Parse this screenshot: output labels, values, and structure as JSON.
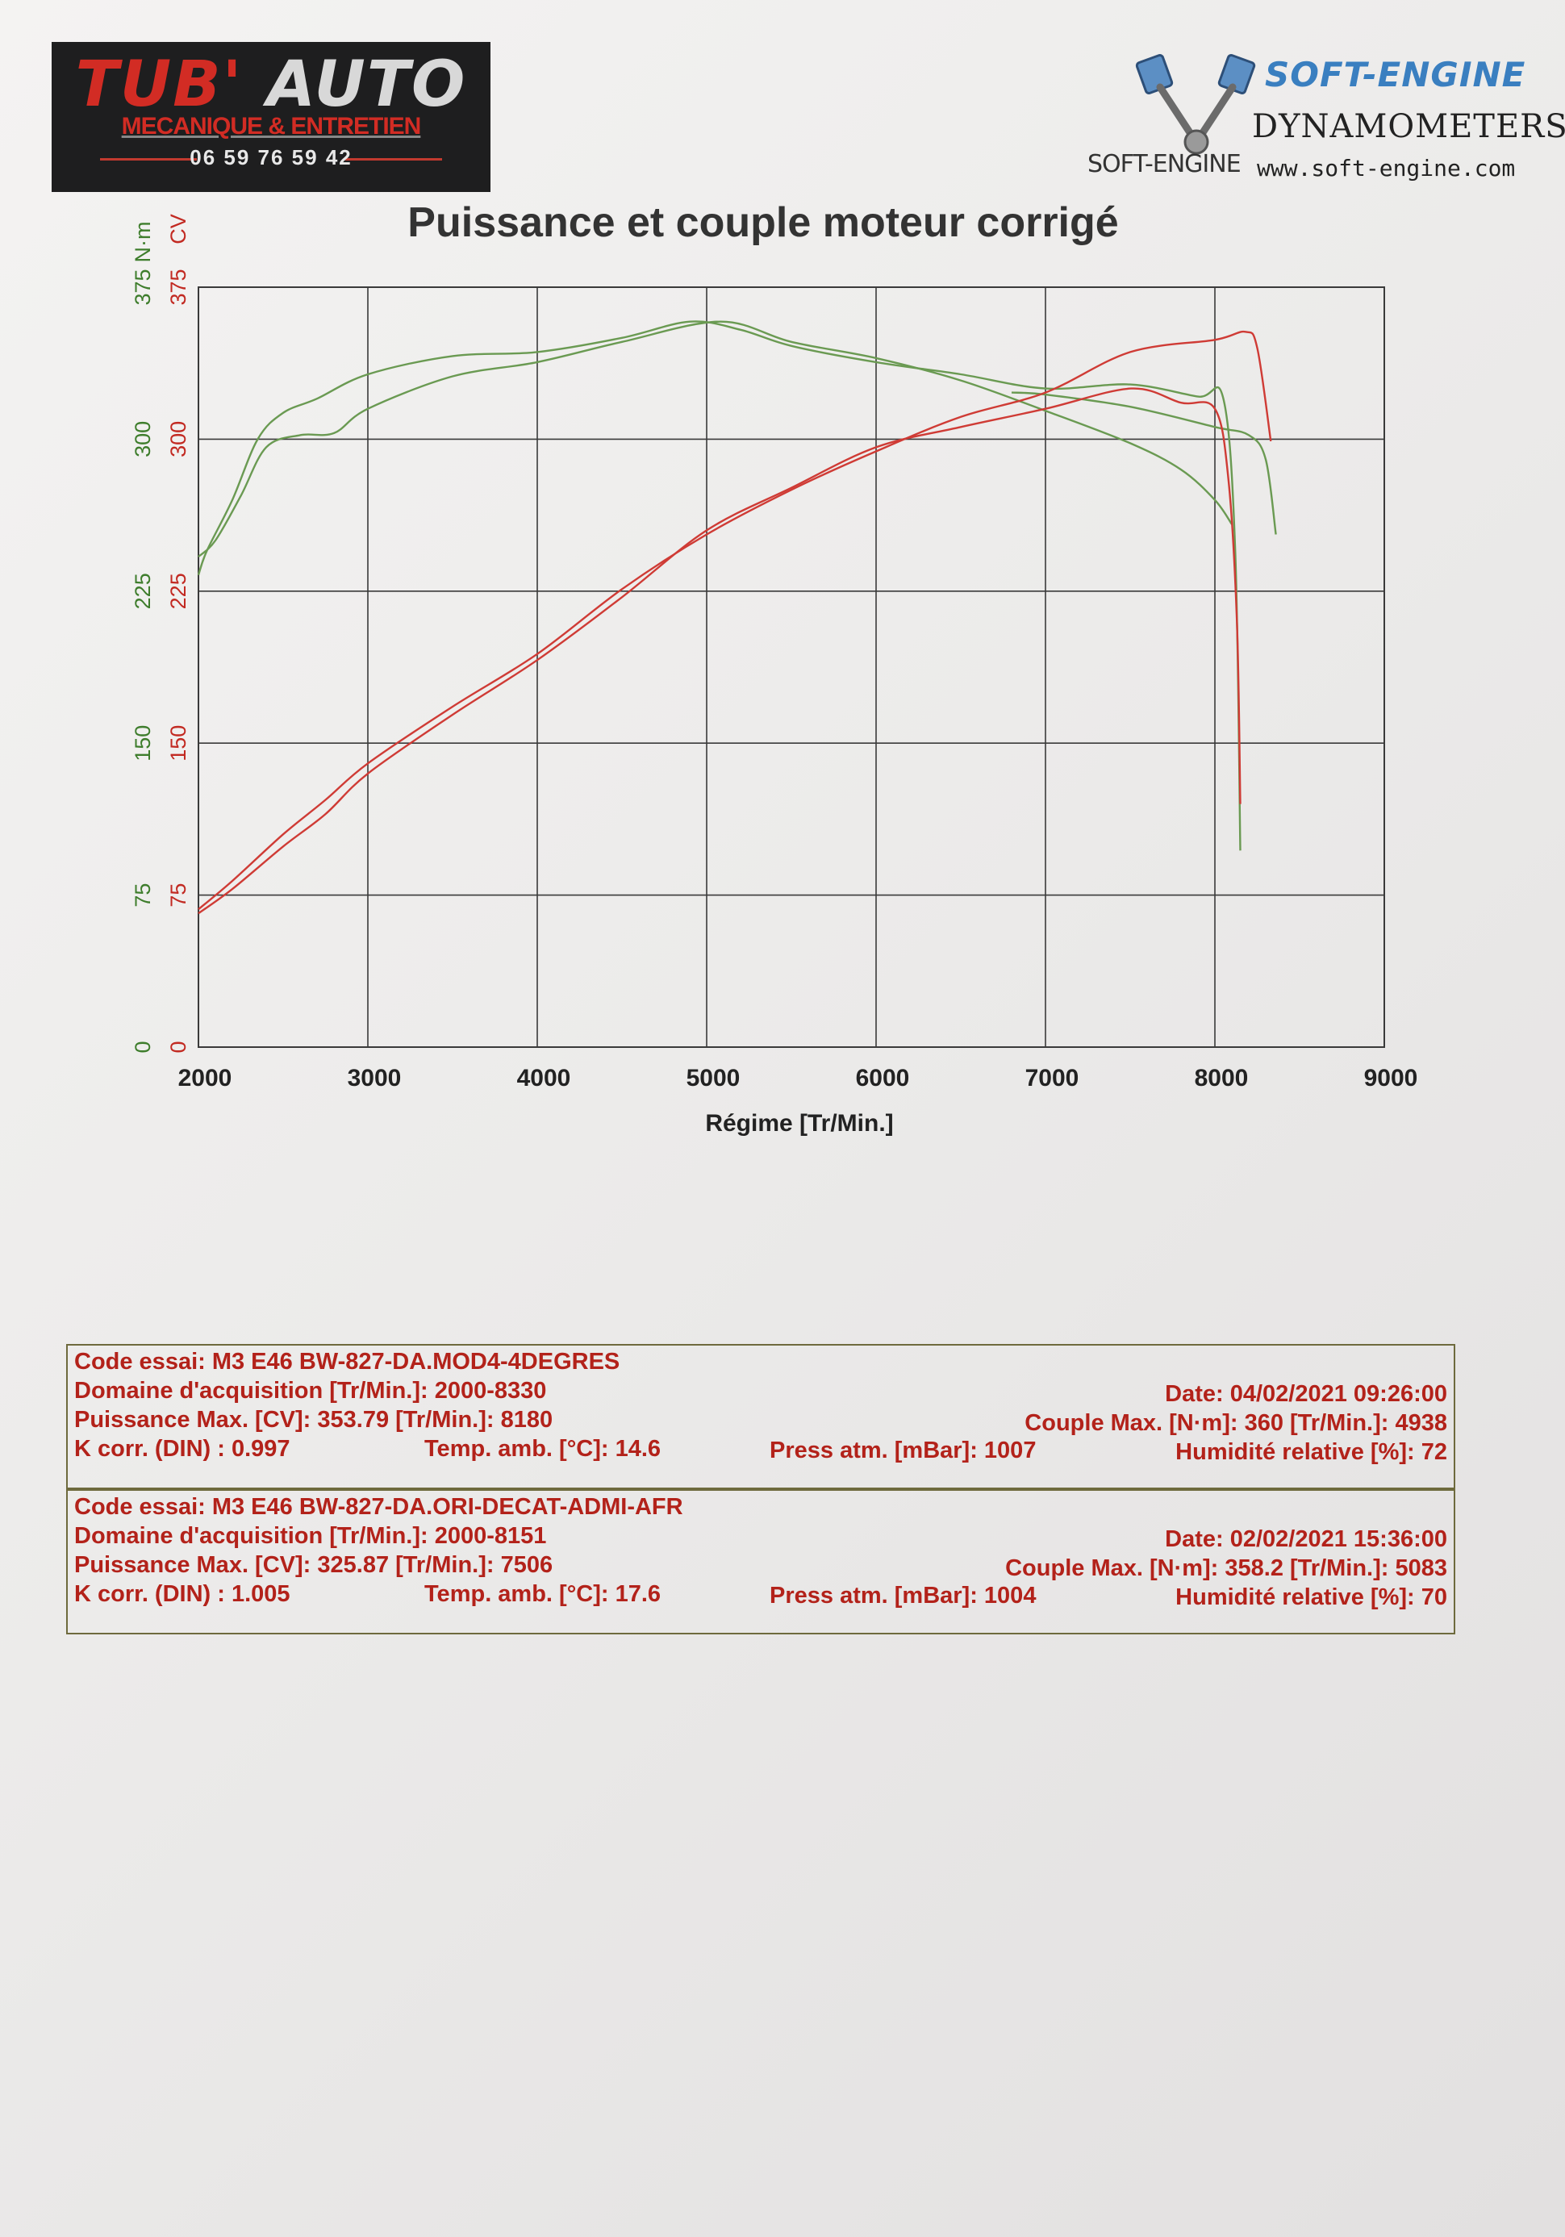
{
  "header": {
    "left_logo": {
      "brand_a": "TUB'",
      "brand_b": " AUTO",
      "subtitle": "MECANIQUE & ENTRETIEN",
      "phone": "06 59 76 59 42"
    },
    "right_logo": {
      "brand": "SOFT-ENGINE",
      "tagline": "DYNAMOMETERS",
      "mark": "SOFT-ENGINE",
      "url": "www.soft-engine.com"
    },
    "colors": {
      "red": "#d22c24",
      "blue": "#3a7fc0"
    }
  },
  "chart_data": {
    "type": "line",
    "title": "Puissance et couple moteur corrigé",
    "xlabel": "Régime [Tr/Min.]",
    "ylabel_left_green": "N·m",
    "ylabel_left_red": "CV",
    "xlim": [
      2000,
      9000
    ],
    "ylim": [
      0,
      375
    ],
    "x_ticks": [
      "2000",
      "3000",
      "4000",
      "5000",
      "6000",
      "7000",
      "8000",
      "9000"
    ],
    "y_ticks": [
      "0",
      "75",
      "150",
      "225",
      "300",
      "375"
    ],
    "grid": true,
    "colors": {
      "torque": "#6a9a52",
      "power": "#cf3b35",
      "grid": "#3a3a3a",
      "green_label": "#3e7d2c",
      "red_label": "#c22a22"
    },
    "series": [
      {
        "kind": "torque",
        "points": [
          [
            2000,
            233
          ],
          [
            2050,
            245
          ],
          [
            2200,
            270
          ],
          [
            2350,
            300
          ],
          [
            2500,
            313
          ],
          [
            2700,
            320
          ],
          [
            3000,
            332
          ],
          [
            3500,
            341
          ],
          [
            4000,
            343
          ],
          [
            4500,
            350
          ],
          [
            4900,
            358
          ],
          [
            5200,
            354
          ],
          [
            5500,
            346
          ],
          [
            6000,
            338
          ],
          [
            6500,
            332
          ],
          [
            7000,
            325
          ],
          [
            7500,
            327
          ],
          [
            7900,
            321
          ],
          [
            8050,
            320
          ],
          [
            8120,
            245
          ],
          [
            8150,
            97
          ]
        ]
      },
      {
        "kind": "torque",
        "points": [
          [
            2000,
            242
          ],
          [
            2100,
            250
          ],
          [
            2250,
            272
          ],
          [
            2400,
            296
          ],
          [
            2600,
            302
          ],
          [
            2800,
            303
          ],
          [
            3000,
            315
          ],
          [
            3500,
            331
          ],
          [
            4000,
            338
          ],
          [
            4500,
            348
          ],
          [
            5083,
            358
          ],
          [
            5500,
            348
          ],
          [
            6000,
            340
          ],
          [
            6500,
            329
          ],
          [
            7000,
            314
          ],
          [
            7500,
            298
          ],
          [
            7800,
            285
          ],
          [
            8000,
            270
          ],
          [
            8100,
            258
          ]
        ]
      },
      {
        "kind": "torque",
        "points": [
          [
            6800,
            323
          ],
          [
            7000,
            322
          ],
          [
            7500,
            316
          ],
          [
            8000,
            306
          ],
          [
            8200,
            302
          ],
          [
            8300,
            290
          ],
          [
            8360,
            253
          ]
        ]
      },
      {
        "kind": "power",
        "points": [
          [
            2000,
            68
          ],
          [
            2200,
            82
          ],
          [
            2500,
            105
          ],
          [
            2750,
            122
          ],
          [
            3000,
            140
          ],
          [
            3500,
            168
          ],
          [
            4000,
            194
          ],
          [
            4500,
            226
          ],
          [
            5000,
            253
          ],
          [
            5500,
            275
          ],
          [
            6000,
            294
          ],
          [
            6500,
            311
          ],
          [
            7000,
            323
          ],
          [
            7500,
            343
          ],
          [
            8000,
            349
          ],
          [
            8180,
            353
          ],
          [
            8250,
            345
          ],
          [
            8330,
            299
          ]
        ]
      },
      {
        "kind": "power",
        "points": [
          [
            2000,
            66
          ],
          [
            2200,
            78
          ],
          [
            2500,
            99
          ],
          [
            2750,
            115
          ],
          [
            3000,
            135
          ],
          [
            3500,
            164
          ],
          [
            4000,
            191
          ],
          [
            4500,
            222
          ],
          [
            5000,
            255
          ],
          [
            5500,
            276
          ],
          [
            6000,
            296
          ],
          [
            6500,
            306
          ],
          [
            7000,
            315
          ],
          [
            7506,
            325
          ],
          [
            7800,
            318
          ],
          [
            8000,
            315
          ],
          [
            8080,
            280
          ],
          [
            8130,
            210
          ],
          [
            8150,
            120
          ]
        ]
      }
    ]
  },
  "tests": [
    {
      "code": "Code essai: M3 E46 BW-827-DA.MOD4-4DEGRES",
      "domain": "Domaine d'acquisition [Tr/Min.]: 2000-8330",
      "date": "Date: 04/02/2021   09:26:00",
      "power": "Puissance Max. [CV]: 353.79   [Tr/Min.]: 8180",
      "torque": "Couple Max. [N·m]: 360   [Tr/Min.]: 4938",
      "kcorr": "K corr. (DIN) : 0.997",
      "temp": "Temp. amb. [°C]: 14.6",
      "press": "Press atm. [mBar]: 1007",
      "humidity": "Humidité relative [%]: 72"
    },
    {
      "code": "Code essai: M3 E46 BW-827-DA.ORI-DECAT-ADMI-AFR",
      "domain": "Domaine d'acquisition [Tr/Min.]: 2000-8151",
      "date": "Date: 02/02/2021   15:36:00",
      "power": "Puissance Max. [CV]: 325.87   [Tr/Min.]: 7506",
      "torque": "Couple Max. [N·m]: 358.2   [Tr/Min.]: 5083",
      "kcorr": "K corr. (DIN) : 1.005",
      "temp": "Temp. amb. [°C]: 17.6",
      "press": "Press atm. [mBar]: 1004",
      "humidity": "Humidité relative [%]: 70"
    }
  ]
}
